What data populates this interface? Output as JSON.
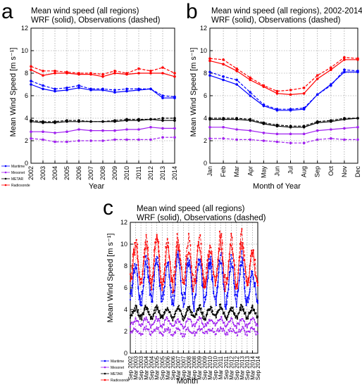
{
  "colors": {
    "maritime": "#0000ff",
    "mesonet": "#a020f0",
    "metar": "#000000",
    "radiosonde": "#ff0000",
    "grid": "#888888"
  },
  "chart_data": [
    {
      "id": "a",
      "type": "line",
      "letter": "a",
      "title_line1": "Mean wind speed (all regions)",
      "title_line2": "WRF (solid), Observations (dashed)",
      "xlabel": "Year",
      "ylabel": "Mean Wind Speed [m s⁻¹]",
      "categories": [
        "2002",
        "2003",
        "2004",
        "2005",
        "2006",
        "2007",
        "2008",
        "2009",
        "2010",
        "2011",
        "2012",
        "2013",
        "2014"
      ],
      "ylim": [
        0,
        12
      ],
      "yticks": [
        0,
        2,
        4,
        6,
        8,
        10,
        12
      ],
      "grid": true,
      "legend_position": "bottom-left",
      "series": [
        {
          "name": "Maritime",
          "key": "maritime",
          "wrf": [
            7.0,
            6.6,
            6.4,
            6.5,
            6.7,
            6.5,
            6.5,
            6.3,
            6.4,
            6.5,
            6.6,
            5.8,
            5.8
          ],
          "obs": [
            7.3,
            6.9,
            6.6,
            6.7,
            6.9,
            6.6,
            6.6,
            6.5,
            6.6,
            6.6,
            6.6,
            6.0,
            5.9
          ]
        },
        {
          "name": "Mesonet",
          "key": "mesonet",
          "wrf": [
            2.8,
            2.8,
            2.7,
            2.8,
            3.0,
            2.9,
            2.9,
            2.9,
            3.0,
            3.0,
            3.2,
            3.1,
            3.1
          ],
          "obs": [
            2.2,
            2.1,
            1.9,
            1.9,
            2.0,
            2.0,
            2.0,
            2.1,
            2.1,
            2.1,
            2.1,
            2.3,
            2.3
          ]
        },
        {
          "name": "METAR",
          "key": "metar",
          "wrf": [
            3.7,
            3.6,
            3.6,
            3.7,
            3.7,
            3.7,
            3.7,
            3.7,
            3.8,
            3.8,
            3.9,
            3.8,
            3.8
          ],
          "obs": [
            3.8,
            3.7,
            3.7,
            3.8,
            3.8,
            3.7,
            3.7,
            3.8,
            3.9,
            3.9,
            3.9,
            4.0,
            4.0
          ]
        },
        {
          "name": "Radiosonde",
          "key": "radiosonde",
          "wrf": [
            8.3,
            7.8,
            8.0,
            8.0,
            7.9,
            7.9,
            7.7,
            8.0,
            7.9,
            8.0,
            8.0,
            8.0,
            7.7
          ],
          "obs": [
            8.6,
            8.2,
            8.2,
            8.1,
            8.0,
            8.0,
            7.9,
            8.2,
            8.0,
            8.4,
            8.2,
            8.5,
            8.0
          ]
        }
      ]
    },
    {
      "id": "b",
      "type": "line",
      "letter": "b",
      "title_line1": "Mean wind speed (all regions), 2002-2014",
      "title_line2": "WRF (solid), Observations (dashed)",
      "xlabel": "Month of Year",
      "ylabel": "Mean Wind Speed [m s⁻¹]",
      "categories": [
        "Jan",
        "Feb",
        "Mar",
        "Apr",
        "May",
        "Jun",
        "Jul",
        "Aug",
        "Sep",
        "Oct",
        "Nov",
        "Dec"
      ],
      "ylim": [
        0,
        12
      ],
      "yticks": [
        0,
        2,
        4,
        6,
        8,
        10,
        12
      ],
      "grid": true,
      "legend_position": "none",
      "series": [
        {
          "name": "Maritime",
          "key": "maritime",
          "wrf": [
            7.8,
            7.4,
            7.0,
            6.0,
            5.1,
            4.7,
            4.7,
            4.8,
            6.1,
            7.0,
            8.1,
            8.1
          ],
          "obs": [
            8.1,
            7.7,
            7.4,
            6.3,
            5.2,
            4.8,
            4.8,
            4.9,
            6.1,
            6.9,
            8.3,
            8.2
          ]
        },
        {
          "name": "Mesonet",
          "key": "mesonet",
          "wrf": [
            3.2,
            3.2,
            3.0,
            2.9,
            2.7,
            2.6,
            2.6,
            2.6,
            2.9,
            3.0,
            3.1,
            3.2
          ],
          "obs": [
            2.2,
            2.2,
            2.1,
            2.1,
            2.0,
            1.9,
            1.8,
            1.8,
            2.1,
            2.2,
            2.1,
            2.1
          ]
        },
        {
          "name": "METAR",
          "key": "metar",
          "wrf": [
            3.9,
            3.9,
            3.9,
            3.8,
            3.5,
            3.3,
            3.2,
            3.2,
            3.6,
            3.7,
            3.9,
            4.0
          ],
          "obs": [
            4.0,
            4.0,
            4.0,
            3.9,
            3.6,
            3.4,
            3.3,
            3.3,
            3.7,
            3.8,
            4.0,
            4.0
          ]
        },
        {
          "name": "Radiosonde",
          "key": "radiosonde",
          "wrf": [
            9.1,
            8.8,
            8.2,
            7.4,
            6.8,
            6.2,
            6.1,
            6.2,
            7.5,
            8.3,
            9.2,
            9.2
          ],
          "obs": [
            9.3,
            9.2,
            8.4,
            7.6,
            6.9,
            6.4,
            6.5,
            6.7,
            7.8,
            8.5,
            9.4,
            9.3
          ]
        }
      ]
    },
    {
      "id": "c",
      "type": "line",
      "letter": "c",
      "title_line1": "Mean wind speed (all regions)",
      "title_line2": "WRF (solid), Observations (dashed)",
      "xlabel": "Month",
      "ylabel": "Mean Wind Speed [m s⁻¹]",
      "categories": [
        "Sep 2002",
        "Mar 2003",
        "Sep 2003",
        "Mar 2004",
        "Sep 2004",
        "Mar 2005",
        "Sep 2005",
        "Mar 2006",
        "Sep 2006",
        "Mar 2007",
        "Sep 2007",
        "Mar 2008",
        "Sep 2008",
        "Mar 2009",
        "Sep 2009",
        "Mar 2010",
        "Sep 2010",
        "Mar 2011",
        "Sep 2011",
        "Mar 2012",
        "Sep 2012",
        "Mar 2013",
        "Sep 2013",
        "Mar 2014",
        "Sep 2014"
      ],
      "ylim": [
        0,
        12
      ],
      "yticks": [
        0,
        2,
        4,
        6,
        8,
        10,
        12
      ],
      "grid": true,
      "legend_position": "bottom-left",
      "series": [
        {
          "name": "Maritime",
          "key": "maritime",
          "wrf": [
            5.0,
            8.0,
            4.5,
            8.4,
            4.8,
            8.8,
            4.6,
            8.2,
            4.6,
            8.6,
            4.5,
            8.3,
            4.4,
            8.6,
            4.5,
            8.2,
            4.6,
            8.8,
            4.5,
            8.3,
            4.5,
            8.6,
            4.4,
            7.3,
            4.6
          ],
          "obs": [
            5.3,
            8.3,
            4.8,
            8.9,
            5.0,
            9.0,
            4.9,
            8.5,
            4.8,
            8.8,
            4.7,
            8.6,
            4.6,
            8.9,
            4.8,
            8.6,
            4.9,
            9.1,
            4.7,
            8.7,
            4.8,
            8.9,
            4.6,
            7.6,
            4.8
          ]
        },
        {
          "name": "Mesonet",
          "key": "mesonet",
          "wrf": [
            2.6,
            3.1,
            2.6,
            3.2,
            2.5,
            3.2,
            2.5,
            3.2,
            2.5,
            3.1,
            2.4,
            3.1,
            2.5,
            3.2,
            2.5,
            3.1,
            2.6,
            3.2,
            2.5,
            3.1,
            2.5,
            3.2,
            2.5,
            3.1,
            2.5
          ],
          "obs": [
            1.9,
            2.2,
            1.8,
            2.3,
            1.8,
            2.3,
            1.8,
            2.2,
            1.8,
            2.2,
            1.7,
            2.2,
            1.8,
            2.3,
            1.8,
            2.2,
            1.9,
            2.3,
            1.8,
            2.2,
            1.8,
            2.3,
            1.8,
            2.2,
            1.8
          ]
        },
        {
          "name": "METAR",
          "key": "metar",
          "wrf": [
            3.3,
            4.1,
            3.2,
            4.2,
            3.2,
            4.1,
            3.2,
            4.1,
            3.1,
            4.2,
            3.2,
            4.1,
            3.2,
            4.2,
            3.2,
            4.1,
            3.3,
            4.2,
            3.2,
            4.1,
            3.3,
            4.2,
            3.2,
            4.1,
            3.3
          ],
          "obs": [
            3.4,
            4.2,
            3.3,
            4.3,
            3.3,
            4.2,
            3.3,
            4.2,
            3.2,
            4.3,
            3.3,
            4.2,
            3.3,
            4.3,
            3.3,
            4.2,
            3.4,
            4.3,
            3.3,
            4.2,
            3.4,
            4.3,
            3.3,
            4.2,
            3.4
          ]
        },
        {
          "name": "Radiosonde",
          "key": "radiosonde",
          "wrf": [
            6.5,
            9.8,
            6.2,
            10.0,
            6.3,
            10.2,
            6.0,
            9.8,
            6.1,
            10.0,
            6.2,
            9.8,
            6.0,
            10.0,
            6.2,
            9.6,
            6.3,
            10.2,
            6.0,
            9.8,
            6.2,
            10.0,
            6.1,
            9.2,
            6.2
          ],
          "obs": [
            6.8,
            10.4,
            6.5,
            10.6,
            6.6,
            11.2,
            6.3,
            10.5,
            6.4,
            10.8,
            6.5,
            10.5,
            6.3,
            10.8,
            6.5,
            10.2,
            6.6,
            11.0,
            6.3,
            10.5,
            6.5,
            10.8,
            6.4,
            9.6,
            6.5
          ]
        }
      ]
    }
  ]
}
